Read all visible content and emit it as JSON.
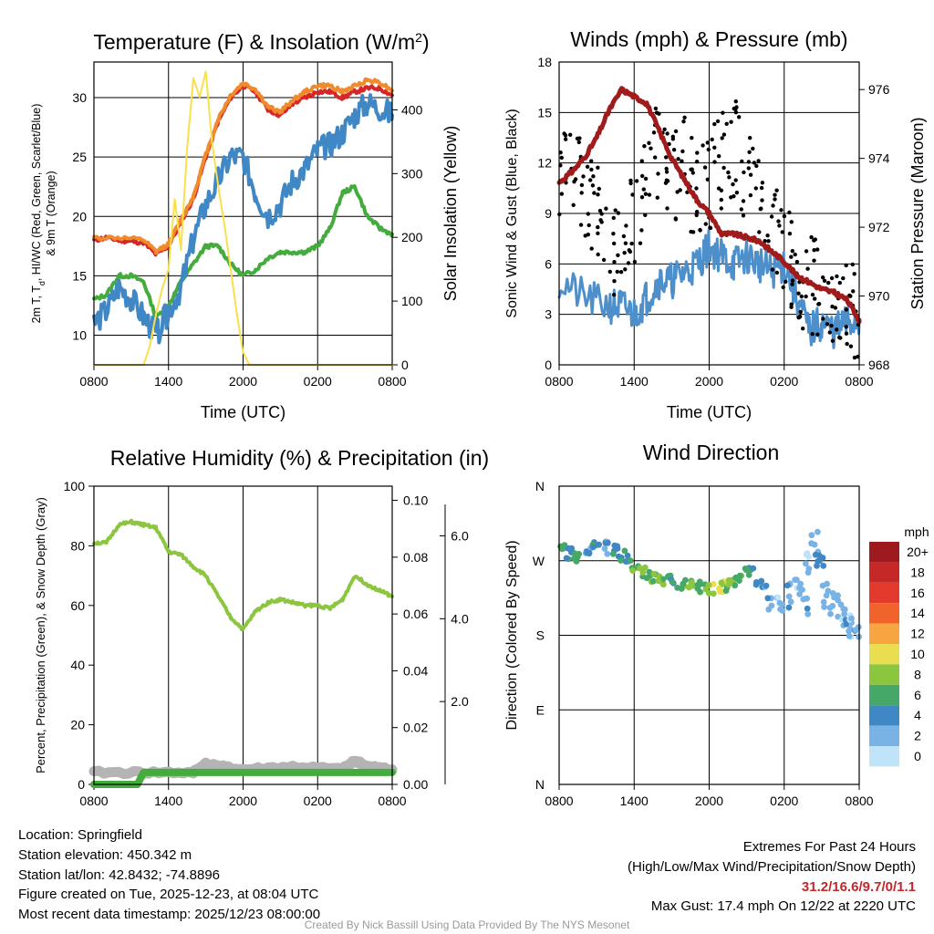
{
  "panels": {
    "temperature": {
      "title": "Temperature (F) & Insolation (W/m",
      "title_sup": "2",
      "title_end": ")",
      "ylabel_line1": "2m T, T",
      "ylabel_sub": "d",
      "ylabel_line1b": ", HI/WC (Red, Green, Scarlet/Blue)",
      "ylabel_line2": "& 9m T (Orange)",
      "y2label": "Solar Insolation (Yellow)",
      "xlabel": "Time (UTC)"
    },
    "winds": {
      "title": "Winds (mph) & Pressure (mb)",
      "ylabel": "Sonic Wind & Gust (Blue, Black)",
      "y2label": "Station Pressure (Maroon)",
      "xlabel": "Time (UTC)"
    },
    "humidity": {
      "title": "Relative Humidity (%) & Precipitation (in)",
      "ylabel": "Percent, Precipitation (Green), & Snow Depth (Gray)"
    },
    "direction": {
      "title": "Wind Direction",
      "ylabel": "Direction (Colored By Speed)",
      "colorbar_title": "mph"
    }
  },
  "chart_data": [
    {
      "type": "line",
      "id": "temperature",
      "x_ticks": [
        "0800",
        "1400",
        "2000",
        "0200",
        "0800"
      ],
      "x_range_hours": [
        0,
        24
      ],
      "ylim": [
        7.5,
        33
      ],
      "y_ticks": [
        10,
        15,
        20,
        25,
        30
      ],
      "y2lim": [
        0,
        475
      ],
      "y2_ticks": [
        0,
        100,
        200,
        300,
        400
      ],
      "series": [
        {
          "name": "2m T",
          "color": "#d62728",
          "x": [
            0,
            1,
            2,
            3,
            4,
            5,
            6,
            7,
            8,
            9,
            10,
            11,
            12,
            13,
            14,
            15,
            16,
            17,
            18,
            19,
            20,
            21,
            22,
            23,
            24
          ],
          "values": [
            18,
            18.2,
            18,
            17.9,
            17.8,
            16.8,
            17.5,
            19.5,
            21.5,
            25,
            28,
            30,
            31,
            30.5,
            29,
            28.5,
            29.5,
            30,
            30.5,
            30.5,
            30,
            30.5,
            30.8,
            30.8,
            30.2
          ]
        },
        {
          "name": "9m T",
          "color": "#f08a2c",
          "x": [
            0,
            2,
            4,
            5,
            6,
            7,
            8,
            9,
            10,
            11,
            12,
            13,
            14,
            15,
            16,
            17,
            18,
            19,
            20,
            21,
            22,
            23,
            24
          ],
          "values": [
            18.2,
            18.2,
            18,
            17,
            17.7,
            19.7,
            21.7,
            25.2,
            28.2,
            30.2,
            31.2,
            30.7,
            29.2,
            28.8,
            29.8,
            30.5,
            31,
            31,
            30.5,
            31,
            31.5,
            31.3,
            30.6
          ]
        },
        {
          "name": "Dew point",
          "color": "#43ac3c",
          "x": [
            0,
            1,
            2,
            3,
            4,
            5,
            6,
            7,
            8,
            9,
            10,
            11,
            12,
            13,
            14,
            15,
            16,
            17,
            18,
            19,
            20,
            21,
            22,
            23,
            24
          ],
          "values": [
            13,
            13.4,
            15,
            15,
            14.5,
            11.5,
            12.5,
            14.5,
            16,
            17.5,
            17.5,
            16,
            15,
            15.5,
            16.5,
            17,
            17,
            17,
            17.5,
            19,
            22,
            22.5,
            20,
            19,
            18.5
          ]
        },
        {
          "name": "Wind chill",
          "color": "#3f88c5",
          "x": [
            0,
            1,
            2,
            3,
            4,
            5,
            6,
            7,
            8,
            9,
            10,
            11,
            12,
            13,
            14,
            15,
            16,
            17,
            18,
            19,
            20,
            21,
            22,
            23,
            24
          ],
          "values": [
            11,
            12,
            14,
            13,
            11.5,
            10,
            12,
            14,
            18,
            21,
            23,
            25,
            25,
            22,
            20,
            21,
            23,
            24,
            25.5,
            26,
            27,
            28.5,
            29.5,
            29,
            28.5
          ]
        },
        {
          "name": "Solar insolation",
          "color": "#f9e04b",
          "axis": "y2",
          "x": [
            0,
            4,
            4.5,
            5,
            5.5,
            6,
            6.5,
            7,
            7.5,
            8,
            8.5,
            9,
            9.5,
            10,
            10.5,
            11,
            11.5,
            12,
            12.5,
            13,
            24
          ],
          "values": [
            0,
            0,
            30,
            80,
            120,
            150,
            260,
            180,
            340,
            450,
            420,
            460,
            350,
            280,
            220,
            150,
            80,
            20,
            0,
            0,
            0
          ]
        }
      ]
    },
    {
      "type": "scatter",
      "id": "winds",
      "x_ticks": [
        "0800",
        "1400",
        "2000",
        "0200",
        "0800"
      ],
      "x_range_hours": [
        0,
        24
      ],
      "ylim": [
        0,
        18
      ],
      "y_ticks": [
        0,
        3,
        6,
        9,
        12,
        15,
        18
      ],
      "y2lim": [
        968,
        976.8
      ],
      "y2_ticks": [
        968,
        970,
        972,
        974,
        976
      ],
      "series": [
        {
          "name": "Sonic wind",
          "color": "#4d8fcb",
          "x": [
            0,
            2,
            4,
            5,
            6,
            7,
            8,
            9,
            10,
            11,
            12,
            13,
            14,
            15,
            16,
            17,
            18,
            19,
            20,
            21,
            22,
            23,
            24
          ],
          "values": [
            5,
            4,
            3.5,
            3.5,
            3,
            4,
            5,
            5,
            5.5,
            6,
            7,
            6.5,
            6,
            6.5,
            6,
            5.5,
            6,
            4,
            2,
            2.5,
            2,
            2.5,
            2.5
          ]
        },
        {
          "name": "Gust",
          "color": "#000000",
          "x": [
            0,
            1,
            2,
            3,
            4,
            5,
            6,
            7,
            8,
            9,
            10,
            11,
            12,
            13,
            14,
            15,
            16,
            17,
            18,
            19,
            20,
            21,
            22,
            23,
            24
          ],
          "values": [
            11,
            12,
            10,
            9,
            7,
            7,
            9,
            11,
            13,
            11,
            12,
            10,
            11,
            12,
            13,
            11,
            10,
            8,
            7,
            5,
            5,
            4,
            4,
            4,
            3
          ]
        },
        {
          "name": "Station pressure",
          "color": "#a01c1c",
          "axis": "y2",
          "x": [
            0,
            1,
            2,
            3,
            4,
            5,
            6,
            7,
            8,
            9,
            10,
            11,
            12,
            13,
            14,
            15,
            16,
            17,
            18,
            19,
            20,
            21,
            22,
            23,
            24
          ],
          "values": [
            973.3,
            973.6,
            974,
            974.6,
            975.4,
            976,
            975.8,
            975.6,
            974.8,
            974,
            973.4,
            972.8,
            972.4,
            971.8,
            971.8,
            971.7,
            971.6,
            971.3,
            971,
            970.6,
            970.4,
            970.2,
            970.1,
            969.9,
            969.3
          ]
        }
      ]
    },
    {
      "type": "line",
      "id": "humidity",
      "x_ticks": [
        "0800",
        "1400",
        "2000",
        "0200",
        "0800"
      ],
      "x_range_hours": [
        0,
        24
      ],
      "ylim": [
        0,
        100
      ],
      "y_ticks": [
        0,
        20,
        40,
        60,
        80,
        100
      ],
      "y2_ticks": [
        "0.00",
        "0.02",
        "0.04",
        "0.06",
        "0.08",
        "0.10"
      ],
      "y3_ticks": [
        "2.0",
        "4.0",
        "6.0"
      ],
      "series": [
        {
          "name": "Relative humidity",
          "color": "#8cc63f",
          "x": [
            0,
            1,
            2,
            3,
            4,
            5,
            6,
            7,
            8,
            9,
            10,
            11,
            12,
            13,
            14,
            15,
            16,
            17,
            18,
            19,
            20,
            21,
            22,
            23,
            24
          ],
          "values": [
            81,
            81,
            87,
            88,
            87,
            86,
            78,
            77,
            73,
            70,
            63,
            56,
            52,
            58,
            61,
            62,
            61,
            60,
            60,
            59,
            62,
            70,
            67,
            65,
            63
          ]
        },
        {
          "name": "Precipitation",
          "color": "#43ac3c",
          "x": [
            0,
            3.5,
            4,
            24
          ],
          "values": [
            0,
            0,
            4,
            4
          ]
        },
        {
          "name": "Snow depth",
          "color": "#b4b4b4",
          "x": [
            0,
            4,
            8,
            9,
            10,
            12,
            16,
            20,
            21,
            22,
            24
          ],
          "values": [
            4,
            4,
            4,
            7,
            6,
            5,
            6,
            5,
            8,
            6,
            5
          ]
        }
      ]
    },
    {
      "type": "scatter",
      "id": "direction",
      "x_ticks": [
        "0800",
        "1400",
        "2000",
        "0200",
        "0800"
      ],
      "x_range_hours": [
        0,
        24
      ],
      "y_ticks": [
        "N",
        "E",
        "S",
        "W",
        "N"
      ],
      "y_range_degrees": [
        0,
        360
      ],
      "x": [
        0.2,
        0.8,
        1.5,
        2.3,
        3,
        3.7,
        4.5,
        5.2,
        6,
        6.8,
        7.5,
        8.2,
        9,
        9.8,
        10.6,
        11.4,
        12,
        12.8,
        13.6,
        14.4,
        15.2,
        16,
        16.8,
        17.6,
        18.4,
        19.2,
        19.6,
        20,
        20.4,
        20.8,
        21.4,
        22,
        22.6,
        23,
        23.5,
        24
      ],
      "values": [
        288,
        278,
        272,
        285,
        290,
        285,
        282,
        275,
        265,
        255,
        250,
        245,
        248,
        242,
        240,
        238,
        236,
        238,
        240,
        246,
        258,
        244,
        226,
        218,
        228,
        242,
        220,
        268,
        292,
        270,
        228,
        218,
        210,
        200,
        190,
        182
      ],
      "speeds": [
        5,
        4,
        6,
        3,
        4,
        2,
        4,
        5,
        6,
        7,
        6,
        7,
        5,
        6,
        7,
        5,
        8,
        9,
        7,
        6,
        4,
        3,
        2,
        1,
        2,
        1,
        2,
        1,
        2,
        3,
        2,
        1,
        1,
        2,
        1,
        2
      ],
      "colorbar": {
        "labels": [
          "20+",
          "18",
          "16",
          "14",
          "12",
          "10",
          "8",
          "6",
          "4",
          "2",
          "0"
        ],
        "colors": [
          "#9e1a1f",
          "#c62828",
          "#e23b2e",
          "#f0642b",
          "#f7a540",
          "#e9de50",
          "#8cc63f",
          "#46a868",
          "#3f88c5",
          "#79b3e6",
          "#bfe4f9"
        ]
      }
    }
  ],
  "info": {
    "location": "Location: Springfield",
    "elevation": "Station elevation: 450.342 m",
    "latlon": "Station lat/lon: 42.8432; -74.8896",
    "created": "Figure created on Tue, 2025-12-23, at 08:04 UTC",
    "recent": "Most recent data timestamp: 2025/12/23 08:00:00"
  },
  "extremes": {
    "title": "Extremes For Past 24 Hours",
    "subtitle": "(High/Low/Max Wind/Precipitation/Snow Depth)",
    "values": "31.2/16.6/9.7/0/1.1",
    "max_gust": "Max Gust: 17.4 mph On 12/22 at 2220 UTC"
  },
  "credit": "Created By Nick Bassill Using Data Provided By The NYS Mesonet"
}
